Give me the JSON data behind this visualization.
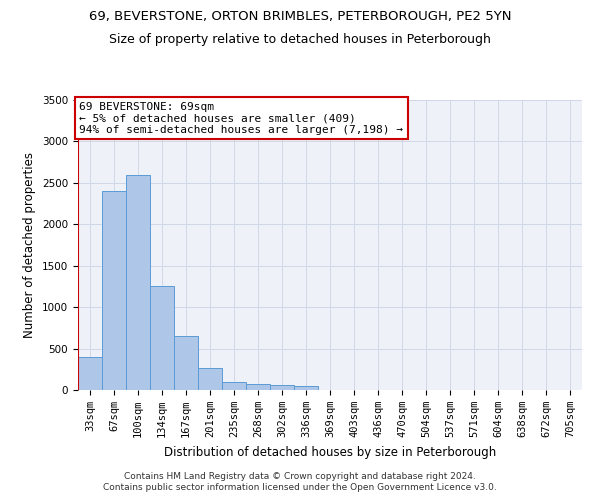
{
  "title_line1": "69, BEVERSTONE, ORTON BRIMBLES, PETERBOROUGH, PE2 5YN",
  "title_line2": "Size of property relative to detached houses in Peterborough",
  "xlabel": "Distribution of detached houses by size in Peterborough",
  "ylabel": "Number of detached properties",
  "categories": [
    "33sqm",
    "67sqm",
    "100sqm",
    "134sqm",
    "167sqm",
    "201sqm",
    "235sqm",
    "268sqm",
    "302sqm",
    "336sqm",
    "369sqm",
    "403sqm",
    "436sqm",
    "470sqm",
    "504sqm",
    "537sqm",
    "571sqm",
    "604sqm",
    "638sqm",
    "672sqm",
    "705sqm"
  ],
  "values": [
    400,
    2400,
    2600,
    1250,
    650,
    260,
    100,
    70,
    60,
    50,
    0,
    0,
    0,
    0,
    0,
    0,
    0,
    0,
    0,
    0,
    0
  ],
  "bar_color": "#aec6e8",
  "bar_edge_color": "#5b9bd5",
  "highlight_color": "#cc0000",
  "annotation_line1": "69 BEVERSTONE: 69sqm",
  "annotation_line2": "← 5% of detached houses are smaller (409)",
  "annotation_line3": "94% of semi-detached houses are larger (7,198) →",
  "annotation_box_color": "#ffffff",
  "annotation_box_edge": "#cc0000",
  "ylim_max": 3500,
  "yticks": [
    0,
    500,
    1000,
    1500,
    2000,
    2500,
    3000,
    3500
  ],
  "grid_color": "#d0d8e8",
  "background_color": "#eef2f8",
  "footer_line1": "Contains HM Land Registry data © Crown copyright and database right 2024.",
  "footer_line2": "Contains public sector information licensed under the Open Government Licence v3.0.",
  "title_fontsize": 9.5,
  "subtitle_fontsize": 9,
  "axis_label_fontsize": 8.5,
  "tick_fontsize": 7.5,
  "annotation_fontsize": 8,
  "footer_fontsize": 6.5,
  "red_line_x": -0.5
}
